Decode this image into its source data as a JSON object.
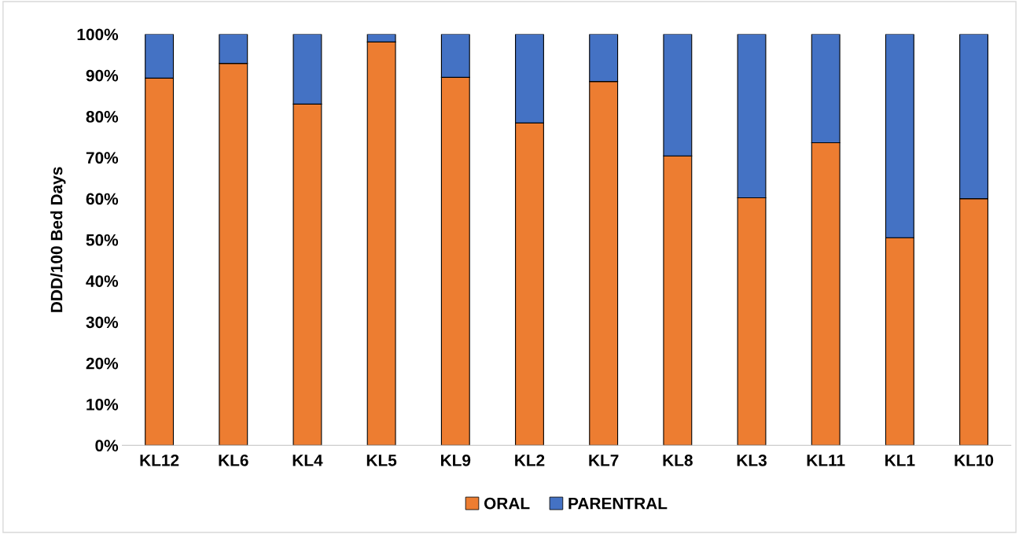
{
  "chart_data": {
    "type": "bar",
    "stacked": true,
    "ylabel": "DDD/100 Bed Days",
    "categories": [
      "KL12",
      "KL6",
      "KL4",
      "KL5",
      "KL9",
      "KL2",
      "KL7",
      "KL8",
      "KL3",
      "KL11",
      "KL1",
      "KL10"
    ],
    "series": [
      {
        "name": "ORAL",
        "color": "#ed7d31",
        "values": [
          89.3,
          92.9,
          83.0,
          98.1,
          89.5,
          78.4,
          88.5,
          70.4,
          60.2,
          73.6,
          50.5,
          60.0
        ]
      },
      {
        "name": "PARENTRAL",
        "color": "#4472c4",
        "values": [
          10.7,
          7.1,
          17.0,
          1.9,
          10.5,
          21.6,
          11.5,
          29.6,
          39.8,
          26.4,
          49.5,
          40.0
        ]
      }
    ],
    "ylim": [
      0,
      100
    ],
    "yticks": [
      {
        "value": 0,
        "label": "0%"
      },
      {
        "value": 10,
        "label": "10%"
      },
      {
        "value": 20,
        "label": "20%"
      },
      {
        "value": 30,
        "label": "30%"
      },
      {
        "value": 40,
        "label": "40%"
      },
      {
        "value": 50,
        "label": "50%"
      },
      {
        "value": 60,
        "label": "60%"
      },
      {
        "value": 70,
        "label": "70%"
      },
      {
        "value": 80,
        "label": "80%"
      },
      {
        "value": 90,
        "label": "90%"
      },
      {
        "value": 100,
        "label": "100%"
      }
    ],
    "grid": false,
    "legend": "bottom"
  }
}
